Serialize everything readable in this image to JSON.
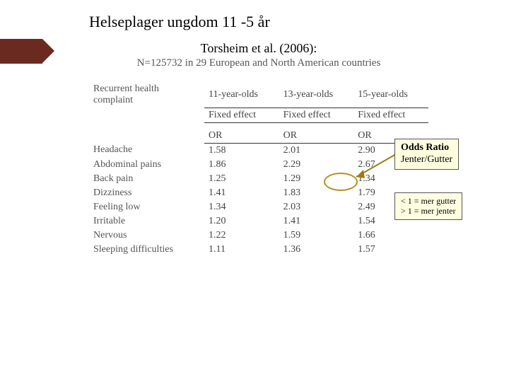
{
  "slide": {
    "title": "Helseplager ungdom 11 -5 år"
  },
  "content": {
    "ref_title": "Torsheim et al. (2006):",
    "ref_sub": "N=125732 in 29 European and North American countries",
    "row_header": "Recurrent health complaint",
    "age_cols": [
      "11-year-olds",
      "13-year-olds",
      "15-year-olds"
    ],
    "fx_label": "Fixed effect",
    "or_label": "OR",
    "rows": [
      {
        "label": "Headache",
        "vals": [
          "1.58",
          "2.01",
          "2.90"
        ]
      },
      {
        "label": "Abdominal pains",
        "vals": [
          "1.86",
          "2.29",
          "2.67"
        ]
      },
      {
        "label": "Back pain",
        "vals": [
          "1.25",
          "1.29",
          "1.34"
        ]
      },
      {
        "label": "Dizziness",
        "vals": [
          "1.41",
          "1.83",
          "1.79"
        ]
      },
      {
        "label": "Feeling low",
        "vals": [
          "1.34",
          "2.03",
          "2.49"
        ]
      },
      {
        "label": "Irritable",
        "vals": [
          "1.20",
          "1.41",
          "1.54"
        ]
      },
      {
        "label": "Nervous",
        "vals": [
          "1.22",
          "1.59",
          "1.66"
        ]
      },
      {
        "label": "Sleeping difficulties",
        "vals": [
          "1.11",
          "1.36",
          "1.57"
        ]
      }
    ]
  },
  "callout1": {
    "t1": "Odds Ratio",
    "t2": "Jenter/Gutter"
  },
  "callout2": {
    "l1": "< 1 = mer gutter",
    "l2": "> 1 = mer jenter"
  },
  "colors": {
    "accent": "#6b2a1f",
    "circle": "#b89020",
    "callout_bg": "#ffffe0"
  }
}
